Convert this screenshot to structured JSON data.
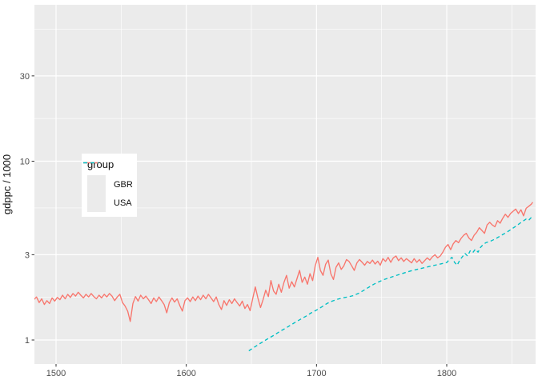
{
  "chart_data": {
    "type": "line",
    "title": "",
    "xlabel": "",
    "ylabel": "gdppc / 1000",
    "y_scale": "log10",
    "x_ticks": [
      1500,
      1600,
      1700,
      1800
    ],
    "x_minor": [
      1550,
      1650,
      1750,
      1850
    ],
    "y_ticks": [
      1,
      3,
      10,
      30
    ],
    "y_minor": [
      1.7321,
      5.4772,
      17.3205,
      54.7723
    ],
    "x_range": [
      1483,
      1868
    ],
    "y_range": [
      0.74,
      75
    ],
    "grid": "on",
    "colors": {
      "panel": "#EBEBEB",
      "grid": "#FFFFFF",
      "tick": "#333333",
      "tick_label": "#4D4D4D",
      "axis_title": "#111111",
      "legend_key": "#EBEBEB",
      "gbr": "#F8766D",
      "usa": "#00BFC4"
    },
    "legend": {
      "title": "group",
      "position": "inside-left",
      "items": [
        {
          "label": "GBR",
          "color": "#F8766D",
          "dash": "solid"
        },
        {
          "label": "USA",
          "color": "#00BFC4",
          "dash": "dashed"
        }
      ]
    },
    "series": [
      {
        "name": "GBR",
        "color": "#F8766D",
        "linetype": "solid",
        "points": [
          [
            1483,
            1.68
          ],
          [
            1485,
            1.74
          ],
          [
            1487,
            1.62
          ],
          [
            1489,
            1.7
          ],
          [
            1491,
            1.58
          ],
          [
            1493,
            1.66
          ],
          [
            1495,
            1.6
          ],
          [
            1497,
            1.72
          ],
          [
            1499,
            1.65
          ],
          [
            1501,
            1.73
          ],
          [
            1503,
            1.68
          ],
          [
            1505,
            1.78
          ],
          [
            1507,
            1.7
          ],
          [
            1509,
            1.8
          ],
          [
            1511,
            1.73
          ],
          [
            1513,
            1.82
          ],
          [
            1515,
            1.76
          ],
          [
            1517,
            1.85
          ],
          [
            1519,
            1.78
          ],
          [
            1521,
            1.72
          ],
          [
            1523,
            1.8
          ],
          [
            1525,
            1.74
          ],
          [
            1527,
            1.82
          ],
          [
            1529,
            1.75
          ],
          [
            1531,
            1.7
          ],
          [
            1533,
            1.78
          ],
          [
            1535,
            1.72
          ],
          [
            1537,
            1.8
          ],
          [
            1539,
            1.74
          ],
          [
            1541,
            1.82
          ],
          [
            1543,
            1.76
          ],
          [
            1545,
            1.66
          ],
          [
            1547,
            1.74
          ],
          [
            1549,
            1.8
          ],
          [
            1551,
            1.62
          ],
          [
            1553,
            1.55
          ],
          [
            1555,
            1.45
          ],
          [
            1557,
            1.27
          ],
          [
            1559,
            1.6
          ],
          [
            1561,
            1.75
          ],
          [
            1563,
            1.65
          ],
          [
            1565,
            1.78
          ],
          [
            1567,
            1.7
          ],
          [
            1569,
            1.76
          ],
          [
            1571,
            1.68
          ],
          [
            1573,
            1.6
          ],
          [
            1575,
            1.72
          ],
          [
            1577,
            1.64
          ],
          [
            1579,
            1.74
          ],
          [
            1581,
            1.66
          ],
          [
            1583,
            1.58
          ],
          [
            1585,
            1.42
          ],
          [
            1587,
            1.62
          ],
          [
            1589,
            1.72
          ],
          [
            1591,
            1.63
          ],
          [
            1593,
            1.7
          ],
          [
            1595,
            1.56
          ],
          [
            1597,
            1.45
          ],
          [
            1599,
            1.66
          ],
          [
            1601,
            1.72
          ],
          [
            1603,
            1.64
          ],
          [
            1605,
            1.74
          ],
          [
            1607,
            1.66
          ],
          [
            1609,
            1.76
          ],
          [
            1611,
            1.68
          ],
          [
            1613,
            1.78
          ],
          [
            1615,
            1.7
          ],
          [
            1617,
            1.8
          ],
          [
            1619,
            1.72
          ],
          [
            1621,
            1.64
          ],
          [
            1623,
            1.74
          ],
          [
            1625,
            1.58
          ],
          [
            1627,
            1.48
          ],
          [
            1629,
            1.66
          ],
          [
            1631,
            1.56
          ],
          [
            1633,
            1.68
          ],
          [
            1635,
            1.6
          ],
          [
            1637,
            1.7
          ],
          [
            1639,
            1.62
          ],
          [
            1641,
            1.55
          ],
          [
            1643,
            1.65
          ],
          [
            1645,
            1.5
          ],
          [
            1647,
            1.58
          ],
          [
            1649,
            1.46
          ],
          [
            1651,
            1.7
          ],
          [
            1653,
            1.98
          ],
          [
            1655,
            1.72
          ],
          [
            1657,
            1.52
          ],
          [
            1659,
            1.68
          ],
          [
            1661,
            1.9
          ],
          [
            1663,
            1.75
          ],
          [
            1665,
            2.15
          ],
          [
            1667,
            1.88
          ],
          [
            1669,
            1.8
          ],
          [
            1671,
            2.05
          ],
          [
            1673,
            1.85
          ],
          [
            1675,
            2.1
          ],
          [
            1677,
            2.3
          ],
          [
            1679,
            1.95
          ],
          [
            1681,
            2.12
          ],
          [
            1683,
            1.98
          ],
          [
            1685,
            2.2
          ],
          [
            1687,
            2.45
          ],
          [
            1689,
            2.1
          ],
          [
            1691,
            2.25
          ],
          [
            1693,
            2.05
          ],
          [
            1695,
            2.35
          ],
          [
            1697,
            2.15
          ],
          [
            1699,
            2.6
          ],
          [
            1701,
            2.9
          ],
          [
            1703,
            2.45
          ],
          [
            1705,
            2.3
          ],
          [
            1707,
            2.65
          ],
          [
            1709,
            2.8
          ],
          [
            1711,
            2.35
          ],
          [
            1713,
            2.18
          ],
          [
            1715,
            2.55
          ],
          [
            1717,
            2.7
          ],
          [
            1719,
            2.48
          ],
          [
            1721,
            2.6
          ],
          [
            1723,
            2.82
          ],
          [
            1725,
            2.75
          ],
          [
            1727,
            2.6
          ],
          [
            1729,
            2.45
          ],
          [
            1731,
            2.7
          ],
          [
            1733,
            2.82
          ],
          [
            1735,
            2.72
          ],
          [
            1737,
            2.62
          ],
          [
            1739,
            2.75
          ],
          [
            1741,
            2.68
          ],
          [
            1743,
            2.8
          ],
          [
            1745,
            2.66
          ],
          [
            1747,
            2.76
          ],
          [
            1749,
            2.62
          ],
          [
            1751,
            2.85
          ],
          [
            1753,
            2.75
          ],
          [
            1755,
            2.9
          ],
          [
            1757,
            2.72
          ],
          [
            1759,
            2.88
          ],
          [
            1761,
            2.95
          ],
          [
            1763,
            2.78
          ],
          [
            1765,
            2.88
          ],
          [
            1767,
            2.75
          ],
          [
            1769,
            2.85
          ],
          [
            1771,
            2.78
          ],
          [
            1773,
            2.7
          ],
          [
            1775,
            2.85
          ],
          [
            1777,
            2.72
          ],
          [
            1779,
            2.82
          ],
          [
            1781,
            2.68
          ],
          [
            1783,
            2.78
          ],
          [
            1785,
            2.88
          ],
          [
            1787,
            2.8
          ],
          [
            1789,
            2.92
          ],
          [
            1791,
            3.0
          ],
          [
            1793,
            2.88
          ],
          [
            1795,
            2.95
          ],
          [
            1797,
            3.1
          ],
          [
            1799,
            3.3
          ],
          [
            1801,
            3.42
          ],
          [
            1803,
            3.2
          ],
          [
            1805,
            3.45
          ],
          [
            1807,
            3.6
          ],
          [
            1809,
            3.5
          ],
          [
            1811,
            3.7
          ],
          [
            1813,
            3.85
          ],
          [
            1815,
            3.95
          ],
          [
            1817,
            3.72
          ],
          [
            1819,
            3.6
          ],
          [
            1821,
            3.85
          ],
          [
            1823,
            4.0
          ],
          [
            1825,
            4.25
          ],
          [
            1827,
            4.1
          ],
          [
            1829,
            3.95
          ],
          [
            1831,
            4.4
          ],
          [
            1833,
            4.55
          ],
          [
            1835,
            4.4
          ],
          [
            1837,
            4.3
          ],
          [
            1839,
            4.65
          ],
          [
            1841,
            4.5
          ],
          [
            1843,
            4.8
          ],
          [
            1845,
            5.05
          ],
          [
            1847,
            4.85
          ],
          [
            1849,
            5.1
          ],
          [
            1851,
            5.25
          ],
          [
            1853,
            5.4
          ],
          [
            1855,
            5.1
          ],
          [
            1857,
            5.35
          ],
          [
            1859,
            4.95
          ],
          [
            1861,
            5.45
          ],
          [
            1863,
            5.6
          ],
          [
            1865,
            5.75
          ],
          [
            1866,
            5.9
          ]
        ]
      },
      {
        "name": "USA",
        "color": "#00BFC4",
        "linetype": "dashed",
        "points": [
          [
            1648,
            0.87
          ],
          [
            1652,
            0.91
          ],
          [
            1656,
            0.95
          ],
          [
            1660,
            0.99
          ],
          [
            1664,
            1.03
          ],
          [
            1668,
            1.07
          ],
          [
            1672,
            1.12
          ],
          [
            1676,
            1.16
          ],
          [
            1680,
            1.21
          ],
          [
            1684,
            1.26
          ],
          [
            1688,
            1.31
          ],
          [
            1692,
            1.36
          ],
          [
            1696,
            1.42
          ],
          [
            1700,
            1.47
          ],
          [
            1704,
            1.53
          ],
          [
            1708,
            1.6
          ],
          [
            1712,
            1.65
          ],
          [
            1716,
            1.69
          ],
          [
            1720,
            1.72
          ],
          [
            1724,
            1.74
          ],
          [
            1728,
            1.77
          ],
          [
            1732,
            1.82
          ],
          [
            1736,
            1.89
          ],
          [
            1740,
            1.97
          ],
          [
            1744,
            2.05
          ],
          [
            1748,
            2.12
          ],
          [
            1752,
            2.18
          ],
          [
            1756,
            2.23
          ],
          [
            1760,
            2.28
          ],
          [
            1764,
            2.33
          ],
          [
            1768,
            2.38
          ],
          [
            1772,
            2.43
          ],
          [
            1776,
            2.47
          ],
          [
            1780,
            2.51
          ],
          [
            1784,
            2.55
          ],
          [
            1788,
            2.59
          ],
          [
            1792,
            2.63
          ],
          [
            1796,
            2.67
          ],
          [
            1800,
            2.71
          ],
          [
            1802,
            2.82
          ],
          [
            1804,
            2.9
          ],
          [
            1806,
            2.72
          ],
          [
            1808,
            2.62
          ],
          [
            1810,
            2.8
          ],
          [
            1812,
            2.92
          ],
          [
            1814,
            3.05
          ],
          [
            1816,
            2.95
          ],
          [
            1818,
            3.15
          ],
          [
            1820,
            3.08
          ],
          [
            1822,
            3.22
          ],
          [
            1824,
            3.1
          ],
          [
            1826,
            3.3
          ],
          [
            1828,
            3.42
          ],
          [
            1830,
            3.5
          ],
          [
            1834,
            3.58
          ],
          [
            1838,
            3.7
          ],
          [
            1842,
            3.85
          ],
          [
            1846,
            4.0
          ],
          [
            1850,
            4.18
          ],
          [
            1854,
            4.38
          ],
          [
            1858,
            4.6
          ],
          [
            1861,
            4.75
          ],
          [
            1863,
            4.68
          ],
          [
            1865,
            4.85
          ],
          [
            1866,
            4.92
          ]
        ]
      }
    ]
  }
}
